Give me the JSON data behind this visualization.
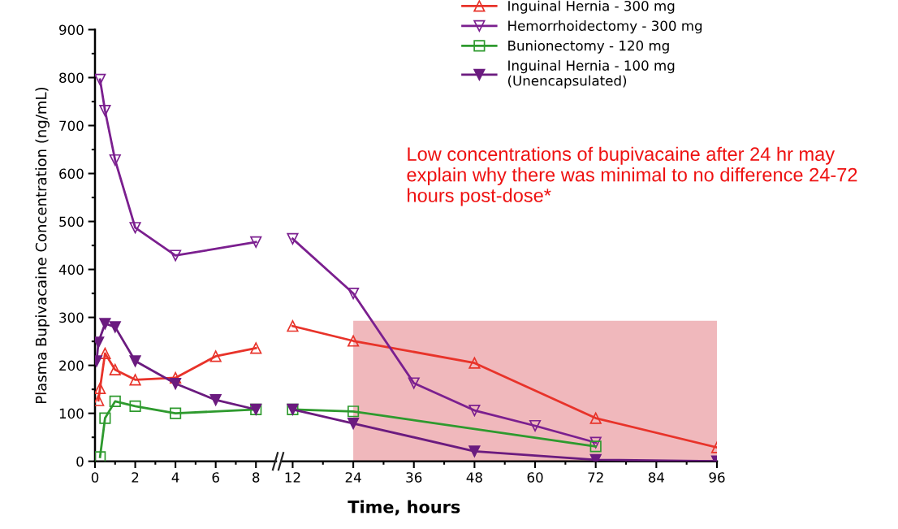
{
  "chart_data": [
    {
      "type": "line",
      "ylabel": "Plasma Bupivacaine Concentration (ng/mL)",
      "xlim": [
        0,
        9
      ],
      "xticks": [
        0,
        2,
        4,
        6,
        8
      ],
      "ylim": [
        0,
        900
      ],
      "yticks": [
        0,
        100,
        200,
        300,
        400,
        500,
        600,
        700,
        800,
        900
      ],
      "line_style": "solid",
      "series": [
        {
          "color": "#e8332a",
          "marker": "triangle",
          "x": [
            0.17,
            0.25,
            0.5,
            1,
            2,
            4,
            6,
            8
          ],
          "values": [
            127,
            152,
            225,
            191,
            170,
            174,
            219,
            236
          ]
        },
        {
          "color": "#7b1f8f",
          "marker": "triangle_down",
          "x": [
            0.25,
            0.5,
            1,
            2,
            4,
            8
          ],
          "values": [
            796,
            731,
            628,
            487,
            429,
            457
          ]
        },
        {
          "color": "#2e9a2e",
          "marker": "square",
          "x": [
            0.25,
            0.5,
            1,
            2,
            4,
            8
          ],
          "values": [
            9,
            90,
            125,
            115,
            100,
            108
          ]
        },
        {
          "color": "#6b1b7f",
          "marker": "triangle_down_filled",
          "x": [
            0.08,
            0.17,
            0.5,
            1,
            2,
            4,
            6,
            8
          ],
          "values": [
            209,
            248,
            287,
            280,
            209,
            162,
            128,
            108
          ]
        }
      ]
    },
    {
      "type": "line",
      "xlabel": "Time, hours",
      "xlim": [
        10,
        96
      ],
      "xticks": [
        12,
        24,
        36,
        48,
        60,
        72,
        84,
        96
      ],
      "ylim": [
        0,
        900
      ],
      "tick_labels": "x",
      "legend": "top right",
      "line_style": "solid",
      "series": [
        {
          "type": "area",
          "color": "#f0b8bc",
          "x": [
            24,
            96
          ],
          "values": [
            293,
            293
          ]
        },
        {
          "name": "Inguinal Hernia - 300 mg",
          "color": "#e8332a",
          "marker": "triangle",
          "x": [
            12,
            24,
            48,
            72,
            96
          ],
          "values": [
            282,
            251,
            205,
            90,
            29
          ]
        },
        {
          "name": "Hemorrhoidectomy - 300 mg",
          "color": "#7b1f8f",
          "marker": "triangle_down",
          "x": [
            12,
            24,
            36,
            48,
            60,
            72
          ],
          "values": [
            464,
            350,
            163,
            106,
            74,
            39
          ]
        },
        {
          "name": "Bunionectomy - 120 mg",
          "color": "#2e9a2e",
          "marker": "square",
          "x": [
            12,
            24,
            72
          ],
          "values": [
            108,
            104,
            31
          ]
        },
        {
          "name": "Inguinal Hernia - 100 mg\n(Unencapsulated)",
          "color": "#6b1b7f",
          "marker": "triangle_down_filled",
          "x": [
            12,
            24,
            48,
            72,
            96
          ],
          "values": [
            108,
            79,
            21,
            3,
            0
          ]
        }
      ],
      "annotations": [
        "Low concentrations of bupivacaine after 24 hr may explain why there was minimal to no difference 24-72 hours post-dose*"
      ]
    }
  ]
}
